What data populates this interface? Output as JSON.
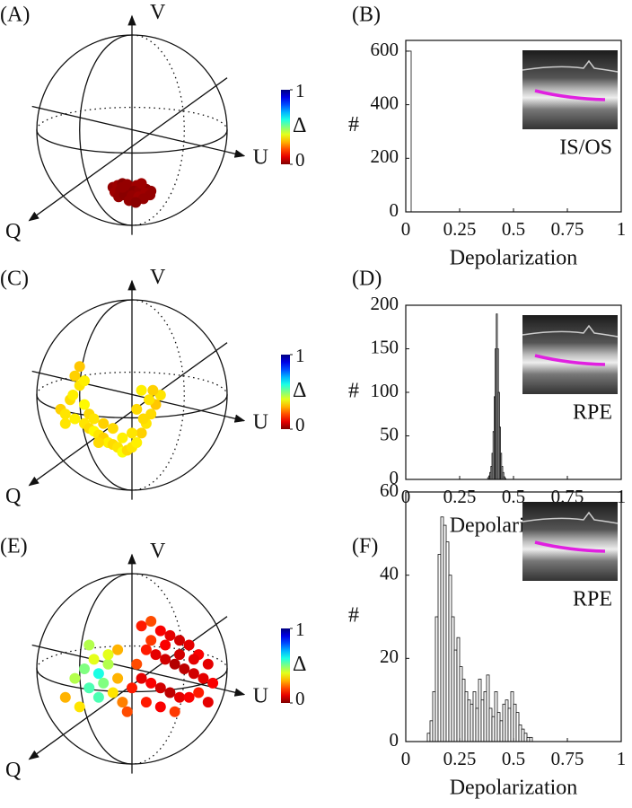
{
  "chart_data": [
    {
      "type": "sphere",
      "panel_label": "(A)",
      "v_label": "V",
      "u_label": "U",
      "q_label": "Q",
      "colormap": "jet",
      "colormap_reversed": true,
      "clim": [
        0,
        1
      ],
      "colorbar_ticks": [
        0,
        1
      ],
      "colorbar_label": "Δ",
      "x": [
        -0.2,
        -0.15,
        -0.1,
        -0.05,
        0,
        0.05,
        0.1,
        0.15,
        0.2,
        -0.18,
        -0.12,
        -0.06,
        0.02,
        0.08,
        0.14,
        0.19,
        -0.14,
        -0.08,
        0,
        0.07,
        0.12,
        -0.03,
        0.04,
        -0.1,
        0.1
      ],
      "y": [
        -0.6,
        -0.58,
        -0.56,
        -0.57,
        -0.6,
        -0.58,
        -0.6,
        -0.62,
        -0.64,
        -0.65,
        -0.63,
        -0.62,
        -0.64,
        -0.63,
        -0.66,
        -0.68,
        -0.7,
        -0.68,
        -0.69,
        -0.7,
        -0.72,
        -0.74,
        -0.76,
        -0.6,
        -0.56
      ],
      "delta": [
        0.02,
        0.03,
        0.01,
        0.02,
        0.02,
        0.03,
        0.02,
        0.01,
        0.02,
        0.03,
        0.02,
        0.02,
        0.01,
        0.02,
        0.03,
        0.02,
        0.02,
        0.01,
        0.02,
        0.03,
        0.02,
        0.02,
        0.01,
        0.02,
        0.03
      ]
    },
    {
      "type": "histogram",
      "panel_label": "(B)",
      "xlabel": "Depolarization",
      "ylabel": "#",
      "inset_label": "IS/OS",
      "color": "#ffffff",
      "bins": [
        0,
        0.025
      ],
      "values": [
        600
      ],
      "xlim": [
        0,
        1
      ],
      "xticks": [
        0,
        0.25,
        0.5,
        0.75,
        1
      ],
      "ylim": [
        0,
        640
      ],
      "yticks": [
        0,
        200,
        400,
        600
      ]
    },
    {
      "type": "sphere",
      "panel_label": "(C)",
      "v_label": "V",
      "u_label": "U",
      "q_label": "Q",
      "colormap": "jet",
      "colormap_reversed": true,
      "clim": [
        0,
        1
      ],
      "colorbar_ticks": [
        0,
        1
      ],
      "colorbar_label": "Δ",
      "x": [
        -0.75,
        -0.7,
        -0.65,
        -0.6,
        -0.55,
        -0.5,
        -0.45,
        -0.4,
        -0.35,
        -0.3,
        -0.25,
        -0.2,
        -0.15,
        -0.1,
        -0.05,
        0,
        0.05,
        0.1,
        0.15,
        0.2,
        0.25,
        0.3,
        0.1,
        0.05,
        -0.6,
        -0.55,
        -0.5,
        -0.45,
        -0.62,
        -0.4,
        -0.3,
        -0.2,
        -0.1,
        0,
        0.12,
        0.22,
        -0.7,
        -0.5,
        -0.35,
        0.18
      ],
      "y": [
        -0.15,
        -0.2,
        -0.05,
        -0.25,
        0.3,
        -0.3,
        -0.35,
        -0.38,
        -0.42,
        -0.45,
        -0.5,
        -0.52,
        -0.55,
        -0.6,
        -0.58,
        -0.55,
        -0.5,
        -0.4,
        -0.3,
        -0.2,
        -0.1,
        0,
        0.05,
        -0.15,
        0.2,
        0.1,
        -0.1,
        -0.2,
        0,
        -0.25,
        -0.3,
        -0.35,
        -0.45,
        -0.4,
        -0.25,
        0.05,
        -0.3,
        0.15,
        -0.5,
        -0.05
      ],
      "delta": [
        0.33,
        0.35,
        0.34,
        0.36,
        0.32,
        0.35,
        0.34,
        0.37,
        0.35,
        0.33,
        0.36,
        0.34,
        0.35,
        0.38,
        0.34,
        0.35,
        0.36,
        0.33,
        0.35,
        0.34,
        0.32,
        0.35,
        0.36,
        0.34,
        0.33,
        0.35,
        0.37,
        0.34,
        0.36,
        0.35,
        0.33,
        0.34,
        0.36,
        0.35,
        0.34,
        0.33,
        0.35,
        0.36,
        0.34,
        0.35
      ]
    },
    {
      "type": "histogram",
      "panel_label": "(D)",
      "xlabel": "Depolarization",
      "ylabel": "#",
      "inset_label": "RPE",
      "color": "#ffffff",
      "bins": [
        0.38,
        0.385,
        0.39,
        0.395,
        0.4,
        0.405,
        0.41,
        0.415,
        0.42,
        0.425,
        0.43,
        0.435,
        0.44,
        0.445,
        0.45,
        0.455,
        0.46,
        0.465
      ],
      "values": [
        2,
        4,
        8,
        15,
        30,
        55,
        95,
        150,
        190,
        150,
        100,
        60,
        30,
        15,
        8,
        3,
        1
      ],
      "xlim": [
        0,
        1
      ],
      "xticks": [
        0,
        0.25,
        0.5,
        0.75,
        1
      ],
      "ylim": [
        0,
        200
      ],
      "yticks": [
        0,
        50,
        100,
        150,
        200
      ]
    },
    {
      "type": "sphere",
      "panel_label": "(E)",
      "v_label": "V",
      "u_label": "U",
      "q_label": "Q",
      "colormap": "jet",
      "colormap_reversed": true,
      "clim": [
        0,
        1
      ],
      "colorbar_ticks": [
        0,
        1
      ],
      "colorbar_label": "Δ",
      "x": [
        0.1,
        0.2,
        0.3,
        0.4,
        0.5,
        0.6,
        0.7,
        0.8,
        0.15,
        0.25,
        0.35,
        0.45,
        0.55,
        0.65,
        0.75,
        0.85,
        0.1,
        0.2,
        0.3,
        0.4,
        0.5,
        0.6,
        0.7,
        0.8,
        0.2,
        0.35,
        0.5,
        0.65,
        0.05,
        0.15,
        0.3,
        0.45,
        -0.7,
        -0.6,
        -0.5,
        -0.45,
        -0.4,
        -0.35,
        -0.3,
        -0.25,
        -0.2,
        -0.15,
        -0.1,
        -0.05,
        -0.55,
        -0.35,
        -0.25,
        -0.15,
        0,
        -0.45
      ],
      "y": [
        0.45,
        0.5,
        0.4,
        0.35,
        0.3,
        0.25,
        0.15,
        0.05,
        0.2,
        0.15,
        0.1,
        0.05,
        0,
        -0.05,
        -0.1,
        -0.15,
        -0.1,
        -0.15,
        -0.2,
        -0.25,
        -0.3,
        -0.3,
        -0.25,
        -0.35,
        0.3,
        0.25,
        0.15,
        0.1,
        0.05,
        -0.35,
        -0.4,
        -0.45,
        -0.3,
        -0.1,
        0,
        -0.2,
        0.1,
        -0.05,
        -0.15,
        0.05,
        -0.25,
        -0.1,
        -0.35,
        -0.45,
        -0.4,
        -0.3,
        0.15,
        0.2,
        -0.2,
        0.25
      ],
      "delta": [
        0.15,
        0.2,
        0.12,
        0.1,
        0.08,
        0.1,
        0.12,
        0.1,
        0.15,
        0.1,
        0.08,
        0.05,
        0.06,
        0.08,
        0.1,
        0.12,
        0.1,
        0.12,
        0.08,
        0.06,
        0.1,
        0.12,
        0.15,
        0.1,
        0.18,
        0.12,
        0.08,
        0.1,
        0.2,
        0.15,
        0.12,
        0.18,
        0.3,
        0.45,
        0.5,
        0.55,
        0.4,
        0.6,
        0.5,
        0.45,
        0.35,
        0.3,
        0.25,
        0.2,
        0.35,
        0.55,
        0.4,
        0.3,
        0.15,
        0.45
      ]
    },
    {
      "type": "histogram",
      "panel_label": "(F)",
      "xlabel": "Depolarization",
      "ylabel": "#",
      "inset_label": "RPE",
      "color": "#ffffff",
      "bins": [
        0.1,
        0.1125,
        0.125,
        0.1375,
        0.15,
        0.1625,
        0.175,
        0.1875,
        0.2,
        0.2125,
        0.225,
        0.2375,
        0.25,
        0.2625,
        0.275,
        0.2875,
        0.3,
        0.3125,
        0.325,
        0.3375,
        0.35,
        0.3625,
        0.375,
        0.3875,
        0.4,
        0.4125,
        0.425,
        0.4375,
        0.45,
        0.4625,
        0.475,
        0.4875,
        0.5,
        0.5125,
        0.525,
        0.5375,
        0.55,
        0.5625,
        0.575,
        0.5875,
        0.6
      ],
      "values": [
        2,
        5,
        12,
        30,
        45,
        54,
        52,
        48,
        40,
        30,
        22,
        25,
        18,
        15,
        12,
        10,
        9,
        12,
        8,
        15,
        10,
        12,
        16,
        8,
        6,
        12,
        7,
        5,
        9,
        10,
        8,
        12,
        9,
        7,
        4,
        3,
        2,
        1,
        1,
        0
      ],
      "xlim": [
        0,
        1
      ],
      "xticks": [
        0,
        0.25,
        0.5,
        0.75,
        1
      ],
      "ylim": [
        0,
        60
      ],
      "yticks": [
        0,
        20,
        40,
        60
      ]
    }
  ]
}
